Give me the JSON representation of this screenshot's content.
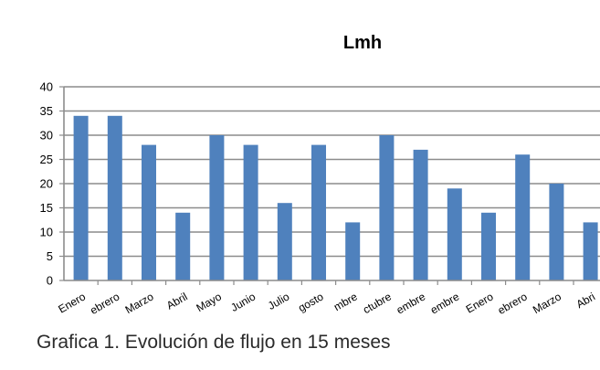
{
  "chart_data": {
    "type": "bar",
    "title": "Lmh",
    "categories": [
      "Enero",
      "Febrero",
      "Marzo",
      "Abril",
      "Mayo",
      "Junio",
      "Julio",
      "Agosto",
      "Septiembre",
      "Octubre",
      "Noviembre",
      "Diciembre",
      "Enero",
      "Febrero",
      "Marzo",
      "Abril"
    ],
    "category_labels_visible": [
      "Enero",
      "ebrero",
      "Marzo",
      "Abril",
      "Mayo",
      "Junio",
      "Julio",
      "gosto",
      "mbre",
      "ctubre",
      "embre",
      "embre",
      "Enero",
      "ebrero",
      "Marzo",
      "Abri"
    ],
    "values": [
      34,
      34,
      28,
      14,
      30,
      28,
      16,
      28,
      12,
      30,
      27,
      19,
      14,
      26,
      20,
      12
    ],
    "ylim": [
      0,
      40
    ],
    "yticks": [
      0,
      5,
      10,
      15,
      20,
      25,
      30,
      35,
      40
    ],
    "grid": true,
    "bar_color": "#4f81bd",
    "grid_color": "#8c8c8c"
  },
  "caption": "Grafica 1. Evolución de flujo en 15 meses"
}
